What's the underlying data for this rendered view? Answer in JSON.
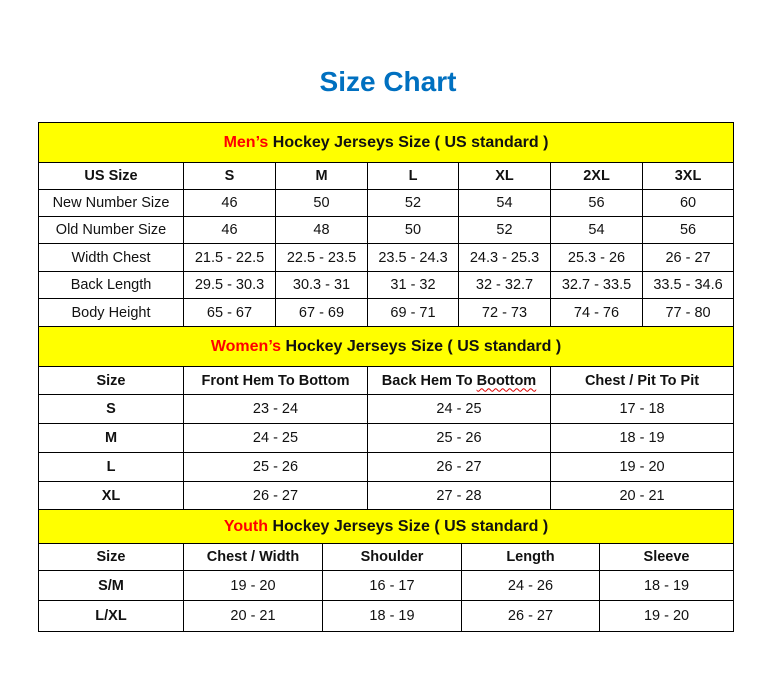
{
  "title": "Size Chart",
  "colors": {
    "title": "#0070c0",
    "banner_bg": "#ffff00",
    "banner_highlight": "#ff0000"
  },
  "sections": [
    {
      "banner_highlight": "Men’s",
      "banner_rest": " Hockey Jerseys Size ( US standard )",
      "header": [
        "US Size",
        "S",
        "M",
        "L",
        "XL",
        "2XL",
        "3XL"
      ],
      "rows": [
        [
          "New Number Size",
          "46",
          "50",
          "52",
          "54",
          "56",
          "60"
        ],
        [
          "Old Number Size",
          "46",
          "48",
          "50",
          "52",
          "54",
          "56"
        ],
        [
          "Width Chest",
          "21.5 - 22.5",
          "22.5 - 23.5",
          "23.5 - 24.3",
          "24.3 - 25.3",
          "25.3 - 26",
          "26 - 27"
        ],
        [
          "Back Length",
          "29.5 - 30.3",
          "30.3 - 31",
          "31 - 32",
          "32 - 32.7",
          "32.7 - 33.5",
          "33.5 - 34.6"
        ],
        [
          "Body Height",
          "65 - 67",
          "67 - 69",
          "69 - 71",
          "72 - 73",
          "74 - 76",
          "77 - 80"
        ]
      ]
    },
    {
      "banner_highlight": "Women’s",
      "banner_rest": " Hockey Jerseys Size ( US standard )",
      "header": [
        "Size",
        "Front Hem To Bottom",
        "Back Hem To Boottom",
        "Chest / Pit To Pit"
      ],
      "rows": [
        [
          "S",
          "23 - 24",
          "24 - 25",
          "17 - 18"
        ],
        [
          "M",
          "24 - 25",
          "25 - 26",
          "18 - 19"
        ],
        [
          "L",
          "25 - 26",
          "26 - 27",
          "19 - 20"
        ],
        [
          "XL",
          "26 - 27",
          "27 - 28",
          "20 - 21"
        ]
      ]
    },
    {
      "banner_highlight": "Youth",
      "banner_rest": " Hockey Jerseys Size ( US standard )",
      "header": [
        "Size",
        "Chest / Width",
        "Shoulder",
        "Length",
        "Sleeve"
      ],
      "rows": [
        [
          "S/M",
          "19 - 20",
          "16 - 17",
          "24 - 26",
          "18 - 19"
        ],
        [
          "L/XL",
          "20 - 21",
          "18 - 19",
          "26 - 27",
          "19 - 20"
        ]
      ]
    }
  ]
}
